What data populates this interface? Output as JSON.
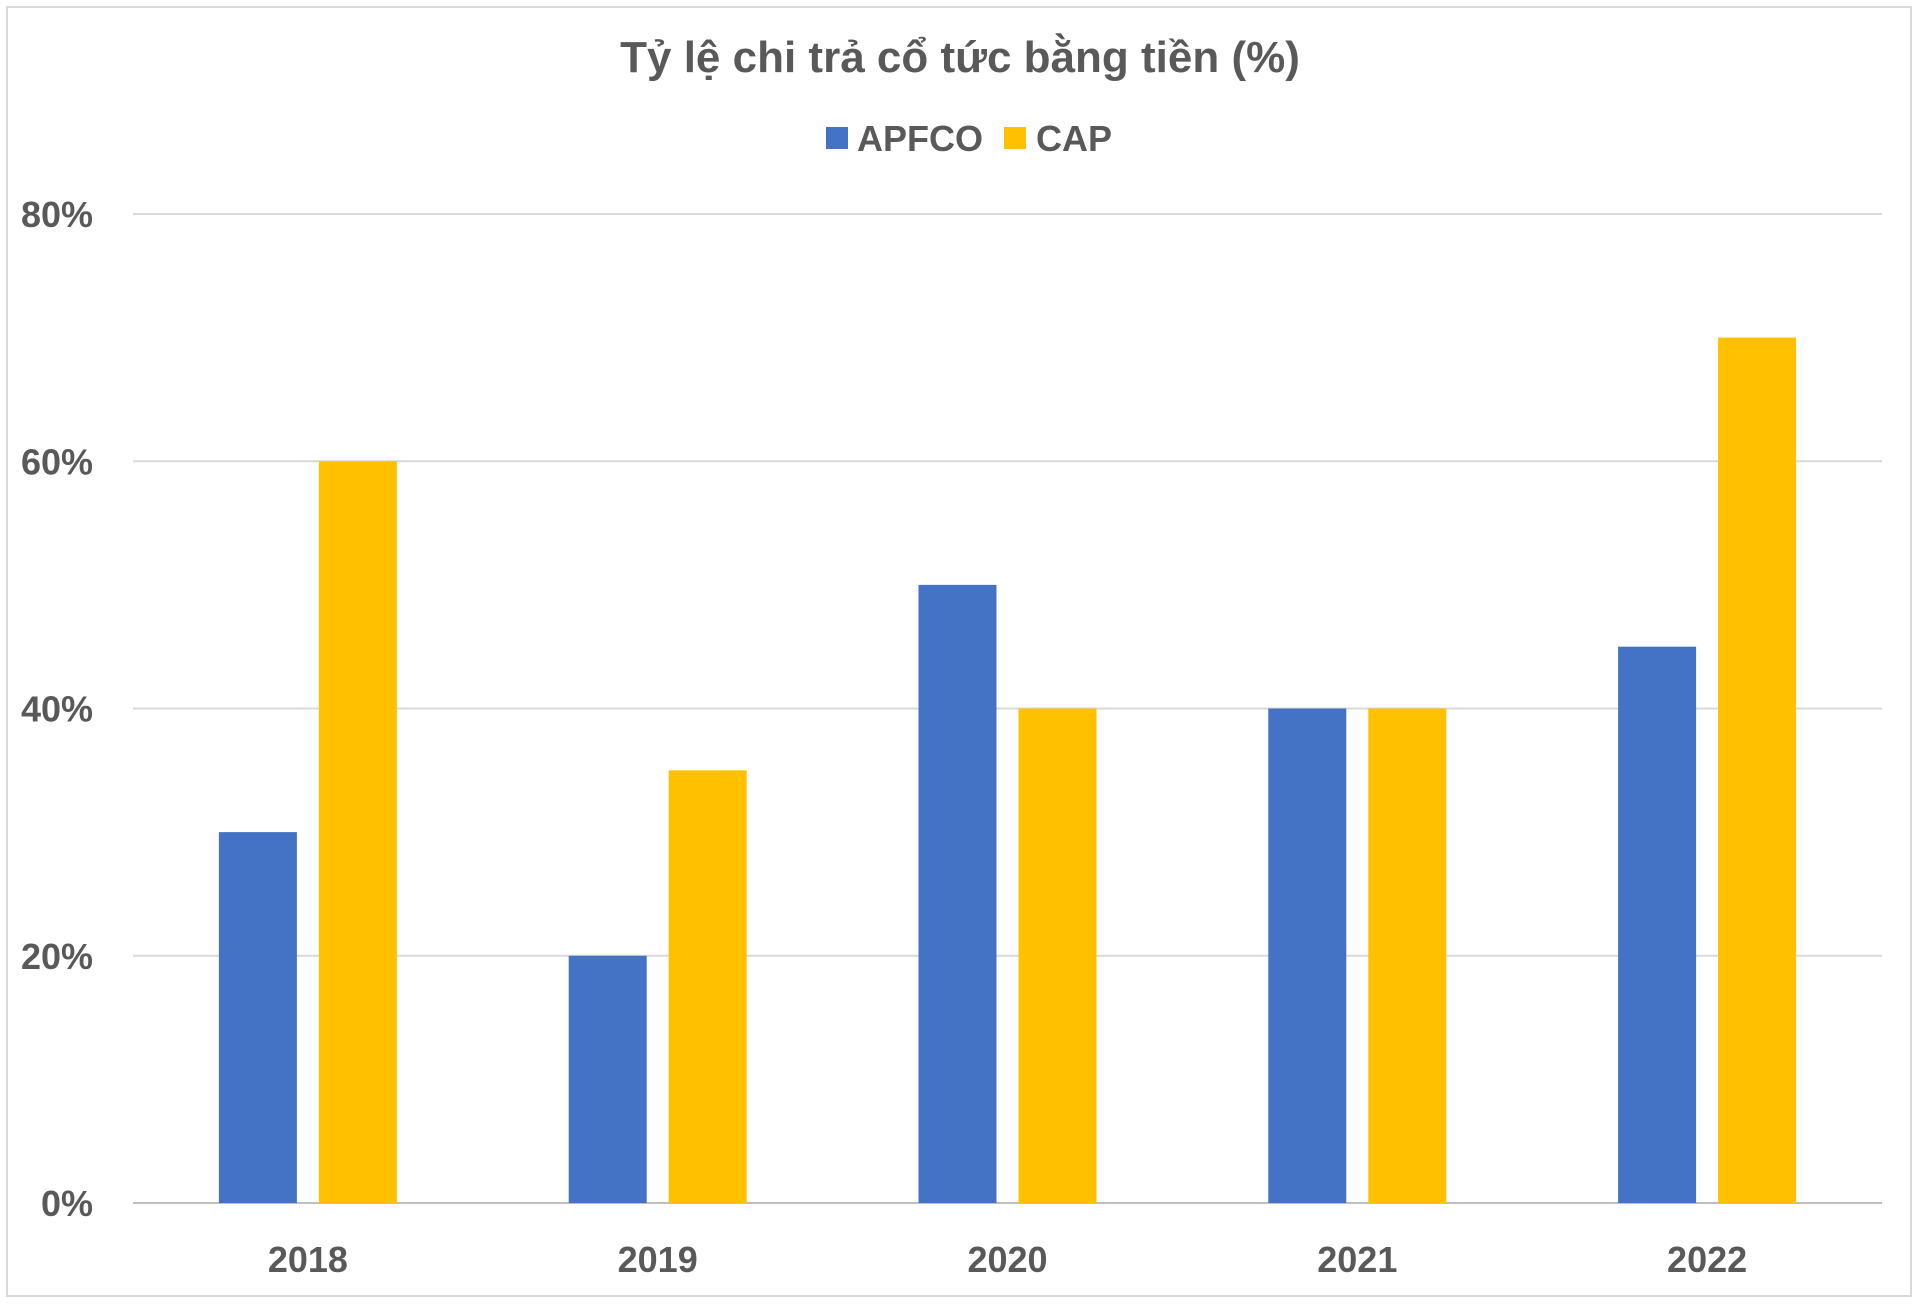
{
  "chart_data": {
    "type": "bar",
    "title": "Tỷ lệ chi trả cổ tức bằng tiền (%)",
    "xlabel": "",
    "ylabel": "",
    "categories": [
      "2018",
      "2019",
      "2020",
      "2021",
      "2022"
    ],
    "series": [
      {
        "name": "APFCO",
        "color": "#4472C4",
        "values": [
          30,
          20,
          50,
          40,
          45
        ]
      },
      {
        "name": "CAP",
        "color": "#FFC000",
        "values": [
          60,
          35,
          40,
          40,
          70
        ]
      }
    ],
    "ylim": [
      0,
      80
    ],
    "yticks": [
      0,
      20,
      40,
      60,
      80
    ],
    "ytick_labels": [
      "0%",
      "20%",
      "40%",
      "60%",
      "80%"
    ],
    "grid": true,
    "legend_position": "top-center"
  }
}
